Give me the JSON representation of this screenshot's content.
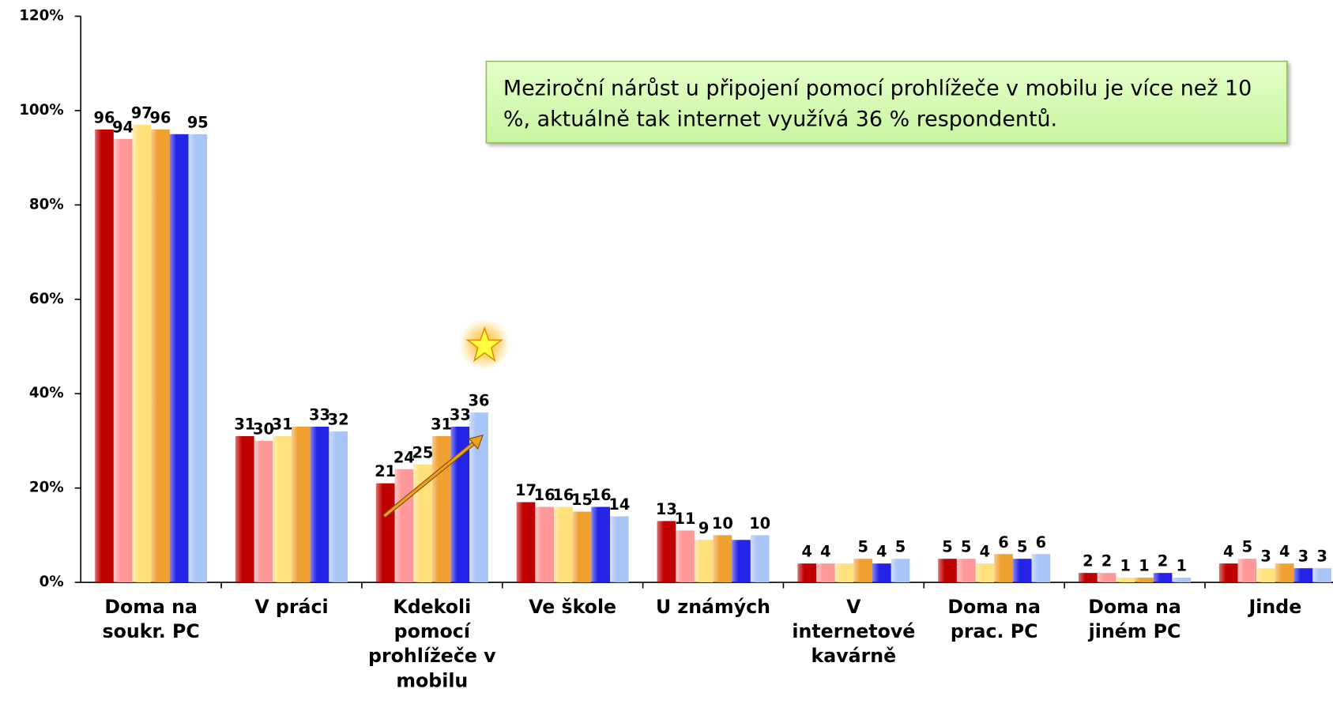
{
  "chart_data": {
    "type": "bar",
    "annotation": "Meziroční nárůst u připojení pomocí prohlížeče v mobilu je více než 10 %, aktuálně tak internet využívá 36 % respondentů.",
    "categories": [
      "Doma na soukr. PC",
      "V práci",
      "Kdekoli pomocí prohlížeče v mobilu",
      "Ve škole",
      "U známých",
      "V internetové kavárně",
      "Doma na prac. PC",
      "Doma na jiném PC",
      "Jinde"
    ],
    "series": [
      {
        "color": "#c00000",
        "values": [
          96,
          31,
          21,
          17,
          13,
          4,
          5,
          2,
          4
        ],
        "value_labels": [
          "96",
          "31",
          "21",
          "17",
          "13",
          "4",
          "5",
          "2",
          "4"
        ]
      },
      {
        "color": "#ff9999",
        "values": [
          94,
          30,
          24,
          16,
          11,
          4,
          5,
          2,
          5
        ],
        "value_labels": [
          "94",
          "30",
          "24",
          "16",
          "11",
          "4",
          "5",
          "2",
          "5"
        ]
      },
      {
        "color": "#ffe07a",
        "values": [
          97,
          31,
          25,
          16,
          9,
          4,
          4,
          1,
          3
        ],
        "value_labels": [
          "97",
          "31",
          "25",
          "16",
          "9",
          null,
          "4",
          "1",
          "3"
        ]
      },
      {
        "color": "#f0a030",
        "values": [
          96,
          33,
          31,
          15,
          10,
          5,
          6,
          1,
          4
        ],
        "value_labels": [
          "96",
          null,
          "31",
          "15",
          "10",
          "5",
          "6",
          "1",
          "4"
        ]
      },
      {
        "color": "#2424e6",
        "values": [
          95,
          33,
          33,
          16,
          9,
          4,
          5,
          2,
          3
        ],
        "value_labels": [
          null,
          "33",
          "33",
          "16",
          null,
          "4",
          "5",
          "2",
          "3"
        ]
      },
      {
        "color": "#a9c5f7",
        "values": [
          95,
          32,
          36,
          14,
          10,
          5,
          6,
          1,
          3
        ],
        "value_labels": [
          "95",
          "32",
          "36",
          "14",
          "10",
          "5",
          "6",
          "1",
          "3"
        ]
      }
    ],
    "ylim": [
      0,
      120
    ],
    "yticks": [
      {
        "value": 0,
        "label": "0%"
      },
      {
        "value": 20,
        "label": "20%"
      },
      {
        "value": 40,
        "label": "40%"
      },
      {
        "value": 60,
        "label": "60%"
      },
      {
        "value": 80,
        "label": "80%"
      },
      {
        "value": 100,
        "label": "100%"
      },
      {
        "value": 120,
        "label": "120%"
      }
    ]
  }
}
